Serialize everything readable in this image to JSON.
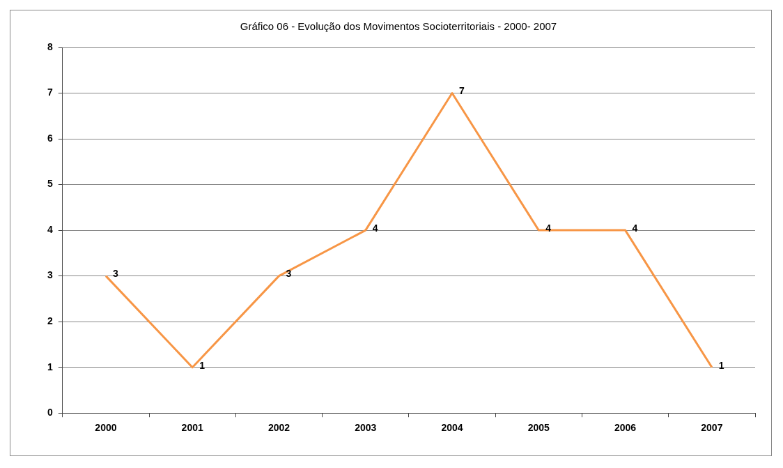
{
  "chart_data": {
    "type": "line",
    "title": "Gráfico 06 - Evolução dos Movimentos Socioterritoriais - 2000- 2007",
    "categories": [
      "2000",
      "2001",
      "2002",
      "2003",
      "2004",
      "2005",
      "2006",
      "2007"
    ],
    "series": [
      {
        "color": "#f79646",
        "values": [
          3,
          1,
          3,
          4,
          7,
          4,
          4,
          1
        ]
      }
    ],
    "ylim": [
      0,
      8
    ],
    "yticks": [
      0,
      1,
      2,
      3,
      4,
      5,
      6,
      7,
      8
    ],
    "grid": "y",
    "legend": false,
    "marker": "none",
    "line_style": "solid",
    "data_labels": true
  }
}
